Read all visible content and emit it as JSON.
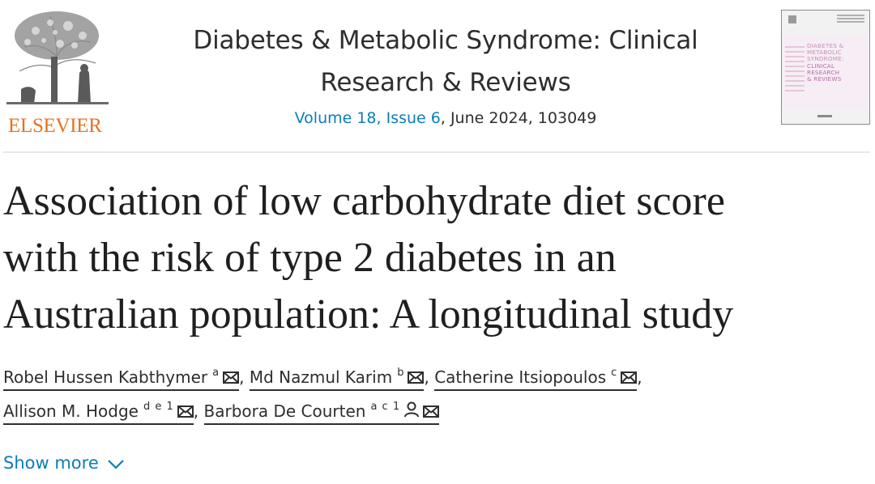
{
  "publisher": {
    "name": "ELSEVIER",
    "brand_color": "#e9711c"
  },
  "journal": {
    "title_line1": "Diabetes & Metabolic Syndrome: Clinical",
    "title_line2": "Research & Reviews",
    "issue_link": "Volume 18, Issue 6",
    "issue_rest": ", June 2024, 103049",
    "link_color": "#0c7dbb"
  },
  "cover": {
    "line1": "DIABETES &",
    "line2": "METABOLIC",
    "line3": "SYNDROME:",
    "line4": "CLINICAL",
    "line5": "RESEARCH",
    "line6": "& REVIEWS"
  },
  "article": {
    "title_line1": "Association of low carbohydrate diet score",
    "title_line2": "with the risk of type 2 diabetes in an",
    "title_line3": "Australian population: A longitudinal study"
  },
  "authors": [
    {
      "name": "Robel Hussen Kabthymer",
      "affiliations": "a",
      "icons": [
        "mail-icon"
      ]
    },
    {
      "name": "Md Nazmul Karim",
      "affiliations": "b",
      "icons": [
        "mail-icon"
      ]
    },
    {
      "name": "Catherine Itsiopoulos",
      "affiliations": "c",
      "icons": [
        "mail-icon"
      ]
    },
    {
      "name": "Allison M. Hodge",
      "affiliations": "d e 1",
      "icons": [
        "mail-icon"
      ]
    },
    {
      "name": "Barbora De Courten",
      "affiliations": "a c 1",
      "icons": [
        "person-icon",
        "mail-icon"
      ]
    }
  ],
  "separator": ",",
  "show_more": {
    "label": "Show more",
    "icon": "chevron-down-icon"
  }
}
